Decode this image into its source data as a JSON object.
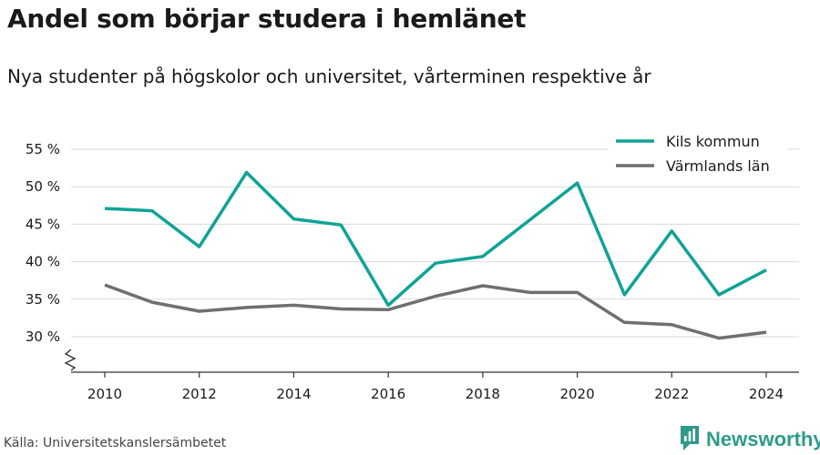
{
  "header": {
    "title": "Andel som börjar studera i hemlänet",
    "subtitle": "Nya studenter på högskolor och universitet, vårterminen respektive år"
  },
  "footer": {
    "source": "Källa: Universitetskanslersämbetet",
    "brand": "Newsworthy",
    "brand_icon": "newsworthy-logo-icon",
    "brand_color": "#2f9a88"
  },
  "chart_data": {
    "type": "line",
    "x": [
      2010,
      2011,
      2012,
      2013,
      2014,
      2015,
      2016,
      2017,
      2018,
      2019,
      2020,
      2021,
      2022,
      2023,
      2024
    ],
    "xticks": [
      2010,
      2012,
      2014,
      2016,
      2018,
      2020,
      2022,
      2024
    ],
    "yticks": [
      30,
      35,
      40,
      45,
      50,
      55
    ],
    "ytick_suffix": " %",
    "ylim": [
      25,
      57
    ],
    "axis_break": true,
    "grid": true,
    "legend_position": "top-right",
    "series": [
      {
        "name": "Kils kommun",
        "color": "#0fa396",
        "values": [
          47.1,
          46.8,
          42.0,
          51.9,
          45.7,
          44.9,
          34.2,
          39.8,
          40.7,
          45.6,
          50.5,
          35.6,
          44.1,
          35.6,
          38.9
        ]
      },
      {
        "name": "Värmlands län",
        "color": "#6e6e73",
        "values": [
          36.9,
          34.6,
          33.4,
          33.9,
          34.2,
          33.7,
          33.6,
          35.4,
          36.8,
          35.9,
          35.9,
          31.9,
          31.6,
          29.8,
          30.6
        ]
      }
    ]
  }
}
